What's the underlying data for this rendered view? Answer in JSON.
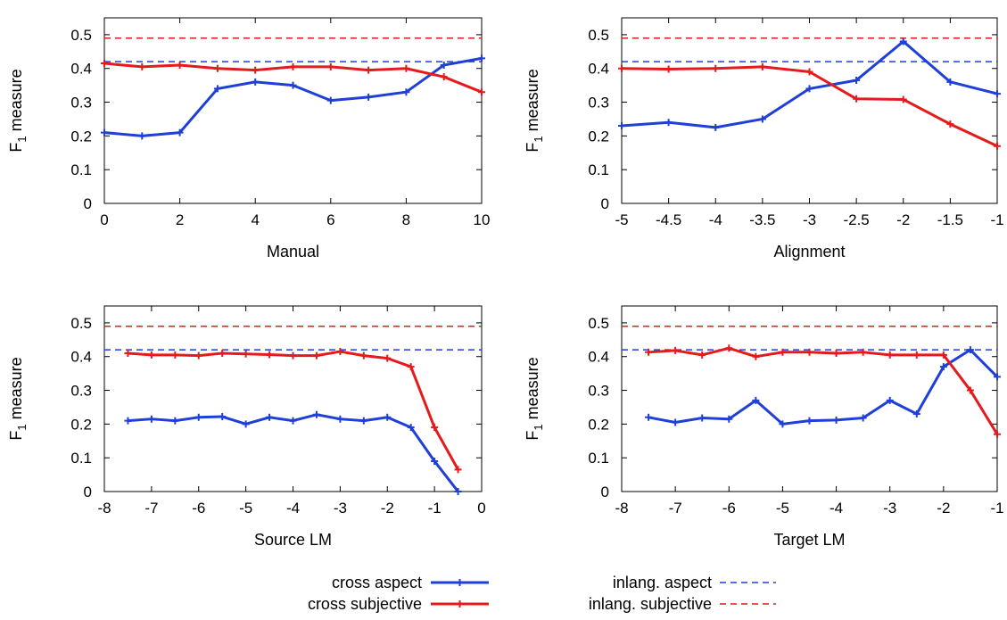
{
  "ylabel_base": "F",
  "ylabel_sub": "1",
  "ylabel_rest": " measure",
  "legend": [
    {
      "label": "cross aspect",
      "color": "#1f3fd9",
      "style": "solid"
    },
    {
      "label": "cross subjective",
      "color": "#e41a1c",
      "style": "solid"
    },
    {
      "label": "inlang. aspect",
      "color": "#1f3fd9",
      "style": "dashed"
    },
    {
      "label": "inlang. subjective",
      "color": "#e41a1c",
      "style": "dashed"
    }
  ],
  "chart_data": [
    {
      "type": "line",
      "xlabel": "Manual",
      "ylabel": "F1 measure",
      "xlim": [
        0,
        10
      ],
      "ylim": [
        0,
        0.55
      ],
      "xticks": [
        "0",
        "2",
        "4",
        "6",
        "8",
        "10"
      ],
      "xtick_values": [
        0,
        2,
        4,
        6,
        8,
        10
      ],
      "yticks": [
        "0",
        "0.1",
        "0.2",
        "0.3",
        "0.4",
        "0.5"
      ],
      "ytick_values": [
        0,
        0.1,
        0.2,
        0.3,
        0.4,
        0.5
      ],
      "x": [
        0,
        1,
        2,
        3,
        4,
        5,
        6,
        7,
        8,
        9,
        10
      ],
      "series": [
        {
          "name": "cross aspect",
          "values": [
            0.21,
            0.2,
            0.21,
            0.34,
            0.36,
            0.35,
            0.305,
            0.315,
            0.33,
            0.41,
            0.43
          ]
        },
        {
          "name": "cross subjective",
          "values": [
            0.415,
            0.405,
            0.41,
            0.4,
            0.395,
            0.405,
            0.405,
            0.395,
            0.4,
            0.375,
            0.33
          ]
        }
      ],
      "baselines": [
        {
          "name": "inlang. aspect",
          "value": 0.42
        },
        {
          "name": "inlang. subjective",
          "value": 0.49
        }
      ]
    },
    {
      "type": "line",
      "xlabel": "Alignment",
      "ylabel": "F1 measure",
      "xlim": [
        -5,
        -1
      ],
      "ylim": [
        0,
        0.55
      ],
      "xticks": [
        "-5",
        "-4.5",
        "-4",
        "-3.5",
        "-3",
        "-2.5",
        "-2",
        "-1.5",
        "-1"
      ],
      "xtick_values": [
        -5,
        -4.5,
        -4,
        -3.5,
        -3,
        -2.5,
        -2,
        -1.5,
        -1
      ],
      "yticks": [
        "0",
        "0.1",
        "0.2",
        "0.3",
        "0.4",
        "0.5"
      ],
      "ytick_values": [
        0,
        0.1,
        0.2,
        0.3,
        0.4,
        0.5
      ],
      "x": [
        -5,
        -4.5,
        -4,
        -3.5,
        -3,
        -2.5,
        -2,
        -1.5,
        -1
      ],
      "series": [
        {
          "name": "cross aspect",
          "values": [
            0.23,
            0.24,
            0.225,
            0.25,
            0.34,
            0.365,
            0.48,
            0.36,
            0.325
          ]
        },
        {
          "name": "cross subjective",
          "values": [
            0.4,
            0.398,
            0.4,
            0.405,
            0.39,
            0.31,
            0.308,
            0.235,
            0.17
          ]
        }
      ],
      "baselines": [
        {
          "name": "inlang. aspect",
          "value": 0.42
        },
        {
          "name": "inlang. subjective",
          "value": 0.49
        }
      ]
    },
    {
      "type": "line",
      "xlabel": "Source LM",
      "ylabel": "F1 measure",
      "xlim": [
        -8,
        0
      ],
      "ylim": [
        0,
        0.55
      ],
      "xticks": [
        "-8",
        "-7",
        "-6",
        "-5",
        "-4",
        "-3",
        "-2",
        "-1",
        "0"
      ],
      "xtick_values": [
        -8,
        -7,
        -6,
        -5,
        -4,
        -3,
        -2,
        -1,
        0
      ],
      "yticks": [
        "0",
        "0.1",
        "0.2",
        "0.3",
        "0.4",
        "0.5"
      ],
      "ytick_values": [
        0,
        0.1,
        0.2,
        0.3,
        0.4,
        0.5
      ],
      "x": [
        -7.5,
        -7,
        -6.5,
        -6,
        -5.5,
        -5,
        -4.5,
        -4,
        -3.5,
        -3,
        -2.5,
        -2,
        -1.5,
        -1,
        -0.5
      ],
      "series": [
        {
          "name": "cross aspect",
          "values": [
            0.21,
            0.215,
            0.21,
            0.22,
            0.222,
            0.2,
            0.22,
            0.21,
            0.228,
            0.215,
            0.21,
            0.22,
            0.19,
            0.09,
            0.0
          ]
        },
        {
          "name": "cross subjective",
          "values": [
            0.41,
            0.405,
            0.405,
            0.403,
            0.41,
            0.408,
            0.406,
            0.403,
            0.403,
            0.415,
            0.403,
            0.395,
            0.37,
            0.19,
            0.065
          ]
        }
      ],
      "baselines": [
        {
          "name": "inlang. aspect",
          "value": 0.42
        },
        {
          "name": "inlang. subjective",
          "value": 0.49
        }
      ]
    },
    {
      "type": "line",
      "xlabel": "Target LM",
      "ylabel": "F1 measure",
      "xlim": [
        -8,
        -1
      ],
      "ylim": [
        0,
        0.55
      ],
      "xticks": [
        "-8",
        "-7",
        "-6",
        "-5",
        "-4",
        "-3",
        "-2",
        "-1"
      ],
      "xtick_values": [
        -8,
        -7,
        -6,
        -5,
        -4,
        -3,
        -2,
        -1
      ],
      "yticks": [
        "0",
        "0.1",
        "0.2",
        "0.3",
        "0.4",
        "0.5"
      ],
      "ytick_values": [
        0,
        0.1,
        0.2,
        0.3,
        0.4,
        0.5
      ],
      "x": [
        -7.5,
        -7,
        -6.5,
        -6,
        -5.5,
        -5,
        -4.5,
        -4,
        -3.5,
        -3,
        -2.5,
        -2,
        -1.5,
        -1
      ],
      "series": [
        {
          "name": "cross aspect",
          "values": [
            0.22,
            0.205,
            0.218,
            0.215,
            0.27,
            0.2,
            0.21,
            0.212,
            0.218,
            0.27,
            0.23,
            0.37,
            0.42,
            0.34
          ]
        },
        {
          "name": "cross subjective",
          "values": [
            0.413,
            0.418,
            0.405,
            0.425,
            0.4,
            0.413,
            0.413,
            0.41,
            0.413,
            0.405,
            0.405,
            0.405,
            0.3,
            0.17
          ]
        }
      ],
      "baselines": [
        {
          "name": "inlang. aspect",
          "value": 0.42
        },
        {
          "name": "inlang. subjective",
          "value": 0.49
        }
      ]
    }
  ]
}
